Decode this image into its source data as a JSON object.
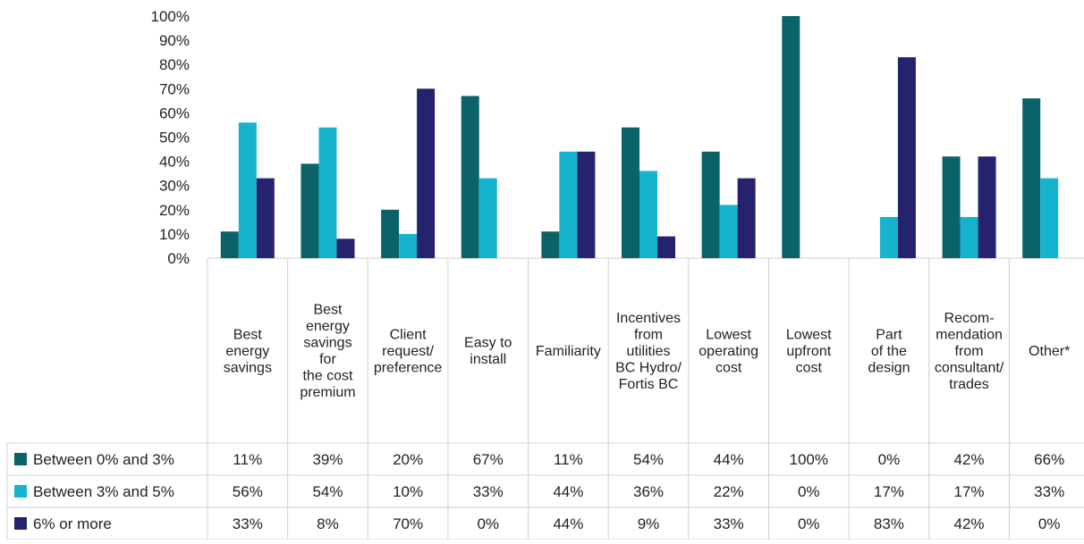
{
  "chart_data": {
    "type": "bar",
    "categories": [
      "Best energy savings",
      "Best energy savings for the cost premium",
      "Client request/ preference",
      "Easy to install",
      "Familiarity",
      "Incentives from utilities BC Hydro/ Fortis BC",
      "Lowest operating cost",
      "Lowest upfront cost",
      "Part of the design",
      "Recom-mendation from consultant/ trades",
      "Other*"
    ],
    "category_lines": [
      [
        "Best",
        "energy",
        "savings"
      ],
      [
        "Best",
        "energy",
        "savings",
        "for",
        "the cost",
        "premium"
      ],
      [
        "Client",
        "request/",
        "preference"
      ],
      [
        "Easy to",
        "install"
      ],
      [
        "Familiarity"
      ],
      [
        "Incentives",
        "from",
        "utilities",
        "BC Hydro/",
        "Fortis BC"
      ],
      [
        "Lowest",
        "operating",
        "cost"
      ],
      [
        "Lowest",
        "upfront",
        "cost"
      ],
      [
        "Part",
        "of the",
        "design"
      ],
      [
        "Recom-",
        "mendation",
        "from",
        "consultant/",
        "trades"
      ],
      [
        "Other*"
      ]
    ],
    "series": [
      {
        "name": "Between 0% and 3%",
        "color": "#0b6369",
        "values": [
          11,
          39,
          20,
          67,
          11,
          54,
          44,
          100,
          0,
          42,
          66
        ],
        "labels": [
          "11%",
          "39%",
          "20%",
          "67%",
          "11%",
          "54%",
          "44%",
          "100%",
          "0%",
          "42%",
          "66%"
        ]
      },
      {
        "name": "Between 3% and 5%",
        "color": "#16b3cf",
        "values": [
          56,
          54,
          10,
          33,
          44,
          36,
          22,
          0,
          17,
          17,
          33
        ],
        "labels": [
          "56%",
          "54%",
          "10%",
          "33%",
          "44%",
          "36%",
          "22%",
          "0%",
          "17%",
          "17%",
          "33%"
        ]
      },
      {
        "name": "6% or more",
        "color": "#25236e",
        "values": [
          33,
          8,
          70,
          0,
          44,
          9,
          33,
          0,
          83,
          42,
          0
        ],
        "labels": [
          "33%",
          "8%",
          "70%",
          "0%",
          "44%",
          "9%",
          "33%",
          "0%",
          "83%",
          "42%",
          "0%"
        ]
      }
    ],
    "ylim": [
      0,
      100
    ],
    "yticks": [
      "0%",
      "10%",
      "20%",
      "30%",
      "40%",
      "50%",
      "60%",
      "70%",
      "80%",
      "90%",
      "100%"
    ],
    "grid": false,
    "legend": "data-table-left"
  }
}
